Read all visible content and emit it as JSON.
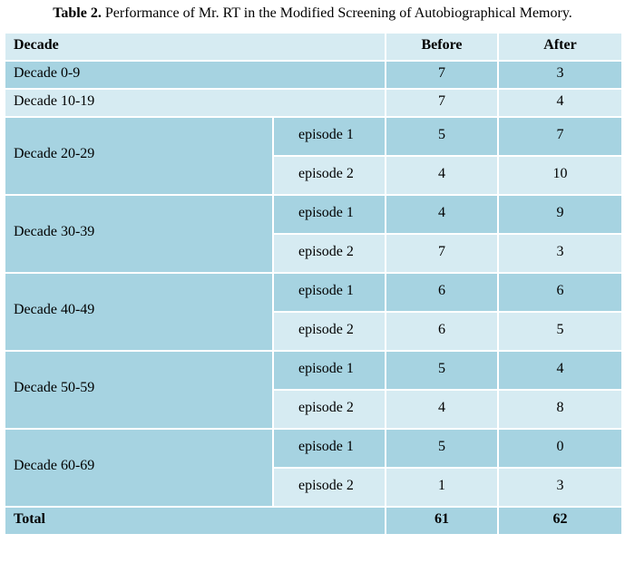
{
  "caption": {
    "label": "Table 2.",
    "text": " Performance of Mr. RT in the Modified Screening of Autobiographical Memory."
  },
  "headers": {
    "decade": "Decade",
    "before": "Before",
    "after": "After"
  },
  "rows": [
    {
      "decade": "Decade 0-9",
      "before": "7",
      "after": "3"
    },
    {
      "decade": "Decade 10-19",
      "before": "7",
      "after": "4"
    }
  ],
  "groups": [
    {
      "decade": "Decade 20-29",
      "episodes": [
        {
          "label": "episode 1",
          "before": "5",
          "after": "7"
        },
        {
          "label": "episode 2",
          "before": "4",
          "after": "10"
        }
      ]
    },
    {
      "decade": "Decade 30-39",
      "episodes": [
        {
          "label": "episode 1",
          "before": "4",
          "after": "9"
        },
        {
          "label": "episode 2",
          "before": "7",
          "after": "3"
        }
      ]
    },
    {
      "decade": "Decade 40-49",
      "episodes": [
        {
          "label": "episode 1",
          "before": "6",
          "after": "6"
        },
        {
          "label": "episode 2",
          "before": "6",
          "after": "5"
        }
      ]
    },
    {
      "decade": "Decade 50-59",
      "episodes": [
        {
          "label": "episode 1",
          "before": "5",
          "after": "4"
        },
        {
          "label": "episode 2",
          "before": "4",
          "after": "8"
        }
      ]
    },
    {
      "decade": "Decade 60-69",
      "episodes": [
        {
          "label": "episode 1",
          "before": "5",
          "after": "0"
        },
        {
          "label": "episode 2",
          "before": "1",
          "after": "3"
        }
      ]
    }
  ],
  "total": {
    "label": "Total",
    "before": "61",
    "after": "62"
  },
  "colors": {
    "dark_row": "#a6d3e1",
    "light_row": "#d6ebf2",
    "border": "#ffffff"
  }
}
